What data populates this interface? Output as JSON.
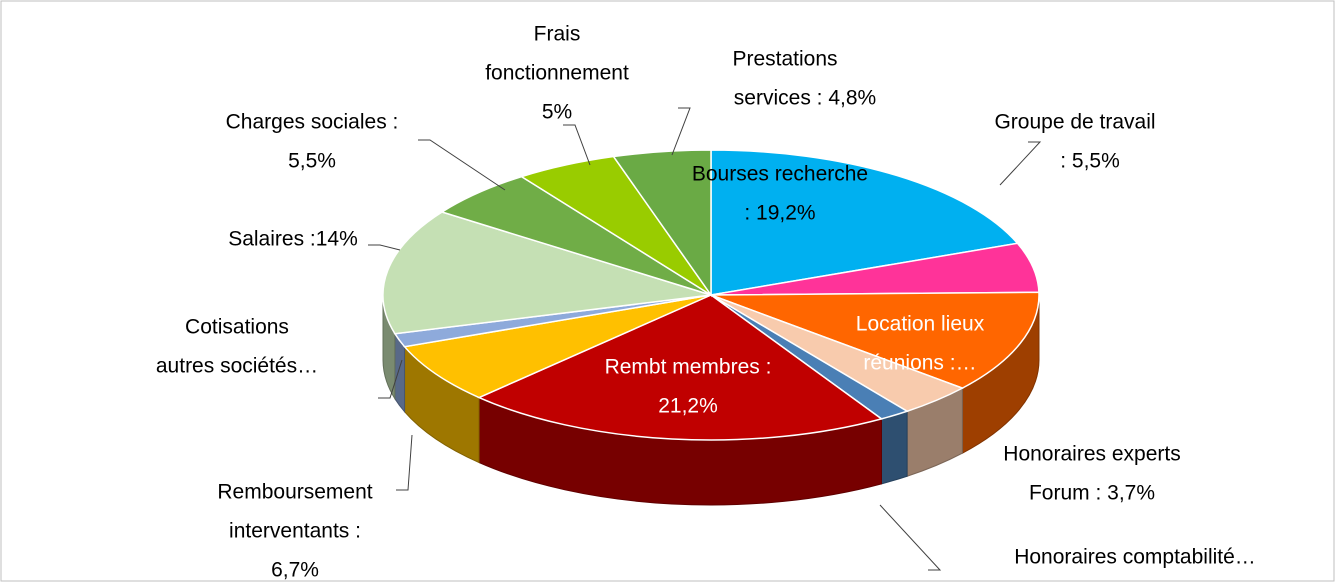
{
  "chart_data": {
    "type": "pie3d",
    "categories": [
      [
        "Bourses recherche",
        ": 19,2%"
      ],
      [
        "Groupe de travail",
        ": 5,5%"
      ],
      [
        "Location lieux",
        "réunions :…"
      ],
      [
        "Honoraires experts",
        "Forum : 3,7%"
      ],
      [
        "Honoraires comptabilité…"
      ],
      [
        "Rembt membres :",
        "21,2%"
      ],
      [
        "Remboursement",
        "interventants :",
        "6,7%"
      ],
      [
        "Cotisations",
        "autres sociétés…"
      ],
      [
        "Salaires :14%"
      ],
      [
        "Charges sociales :",
        "5,5%"
      ],
      [
        "Frais",
        "fonctionnement",
        "5%"
      ],
      [
        "Prestations",
        "services :  4,8%"
      ]
    ],
    "values": [
      19.2,
      5.5,
      11.4,
      3.7,
      1.5,
      21.2,
      6.7,
      1.5,
      14,
      5.5,
      5,
      4.8
    ],
    "colors": [
      "#00b0f0",
      "#ff3399",
      "#ff6600",
      "#f8cbad",
      "#4a7fb5",
      "#c00000",
      "#ffc000",
      "#8eaadb",
      "#c5e0b4",
      "#70ad47",
      "#99cc00",
      "#6aaa45"
    ]
  }
}
